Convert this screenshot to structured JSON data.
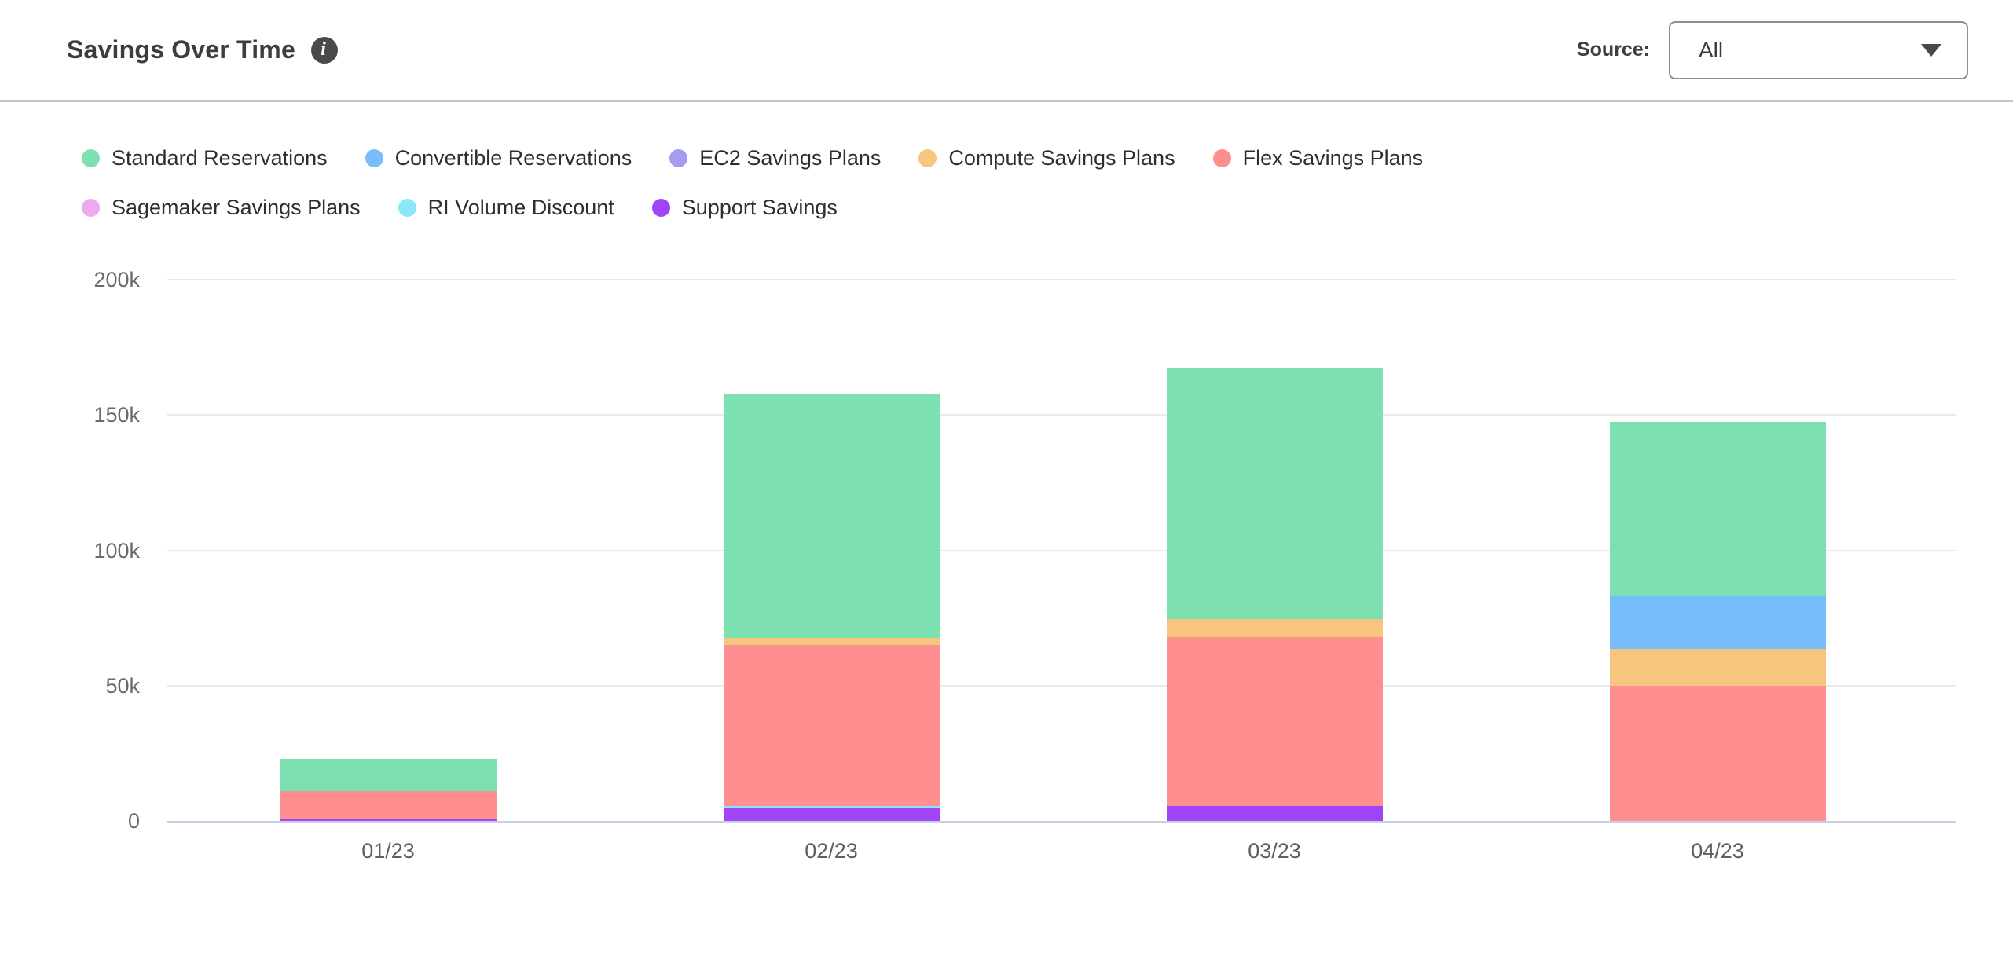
{
  "header": {
    "title": "Savings Over Time",
    "info_icon_glyph": "i",
    "source_label": "Source:",
    "source_value": "All"
  },
  "colors": {
    "header_border": "#c6c6c6",
    "gridline": "#eaeaea",
    "axis_line": "#c7cfe9",
    "title_text": "#3d3d3d",
    "axis_text": "#6a6a6a"
  },
  "chart_data": {
    "type": "bar",
    "stacked": true,
    "title": "Savings Over Time",
    "categories": [
      "01/23",
      "02/23",
      "03/23",
      "04/23"
    ],
    "series": [
      {
        "name": "Standard Reservations",
        "color": "#7de0b1",
        "values_k": [
          12,
          90.5,
          93,
          64.5
        ]
      },
      {
        "name": "Convertible Reservations",
        "color": "#77bdfc",
        "values_k": [
          0,
          0,
          0,
          19.5
        ]
      },
      {
        "name": "EC2 Savings Plans",
        "color": "#a49cf1",
        "values_k": [
          0,
          0,
          0,
          0
        ]
      },
      {
        "name": "Compute Savings Plans",
        "color": "#f8c57e",
        "values_k": [
          0,
          2.5,
          6.5,
          13.5
        ]
      },
      {
        "name": "Flex Savings Plans",
        "color": "#ff8e8e",
        "values_k": [
          10,
          59.5,
          62.5,
          50
        ]
      },
      {
        "name": "Sagemaker Savings Plans",
        "color": "#efa9ef",
        "values_k": [
          0,
          0,
          0,
          0
        ]
      },
      {
        "name": "RI Volume Discount",
        "color": "#8ae8f8",
        "values_k": [
          0,
          1,
          0,
          0
        ]
      },
      {
        "name": "Support Savings",
        "color": "#a044f8",
        "values_k": [
          1,
          4.5,
          5.5,
          0
        ]
      }
    ],
    "stack_order_bottom_to_top": [
      "Support Savings",
      "RI Volume Discount",
      "Sagemaker Savings Plans",
      "Flex Savings Plans",
      "Compute Savings Plans",
      "EC2 Savings Plans",
      "Convertible Reservations",
      "Standard Reservations"
    ],
    "totals_k": [
      23,
      158,
      167.5,
      147.5
    ],
    "y_axis": {
      "tick_labels": [
        "0",
        "50k",
        "100k",
        "150k",
        "200k"
      ],
      "tick_values_k": [
        0,
        50,
        100,
        150,
        200
      ],
      "ylim_k": [
        0,
        200
      ]
    },
    "unit": "thousands (k)",
    "grid": true,
    "legend_position": "top"
  }
}
